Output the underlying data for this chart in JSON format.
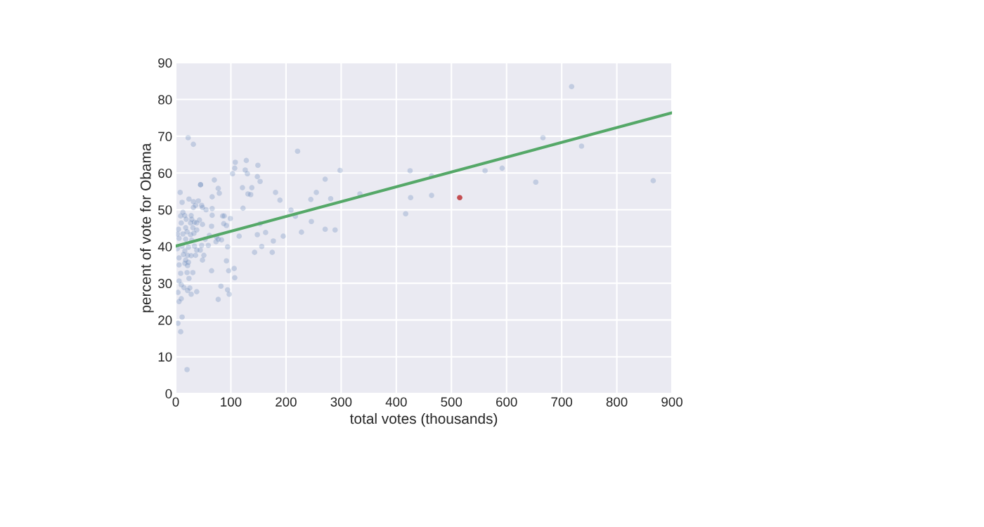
{
  "chart_data": {
    "type": "scatter",
    "xlabel": "total votes (thousands)",
    "ylabel": "percent of vote for Obama",
    "xlim": [
      0,
      900
    ],
    "ylim": [
      0,
      90
    ],
    "xticks": [
      0,
      100,
      200,
      300,
      400,
      500,
      600,
      700,
      800,
      900
    ],
    "yticks": [
      0,
      10,
      20,
      30,
      40,
      50,
      60,
      70,
      80,
      90
    ],
    "grid": true,
    "legend": false,
    "series": [
      {
        "marker": "circle",
        "color": "#4c72b0",
        "x": [
          718,
          666,
          736,
          592,
          561,
          653,
          866,
          464,
          464,
          425,
          426,
          417,
          334,
          298,
          271,
          255,
          245,
          281,
          221,
          209,
          217,
          246,
          228,
          271,
          289,
          128,
          149,
          126,
          130,
          148,
          153,
          121,
          138,
          131,
          136,
          181,
          189,
          122,
          153,
          115,
          148,
          163,
          195,
          177,
          156,
          143,
          175,
          22.5,
          32,
          108,
          107,
          103,
          70,
          45,
          45,
          77,
          79,
          8,
          66,
          24,
          11.5,
          32,
          41,
          36,
          47,
          32,
          55,
          48.5,
          66,
          13,
          9,
          16.5,
          28,
          66,
          85,
          88,
          99,
          19,
          29,
          43,
          34,
          10,
          27,
          38,
          48.5,
          87,
          92,
          65,
          18,
          31,
          5,
          38,
          20.5,
          33,
          3,
          13,
          27,
          61,
          74,
          83,
          73,
          77,
          6,
          18,
          29,
          53.5,
          47,
          59,
          94,
          11.5,
          23,
          34,
          3,
          16.5,
          38,
          44.5,
          14,
          21.5,
          51,
          36,
          28,
          6,
          18,
          23,
          48.5,
          16.5,
          6,
          21.5,
          92,
          106,
          96,
          65,
          107,
          9,
          20.5,
          24,
          31,
          6,
          10,
          15,
          25.5,
          21.5,
          38,
          82,
          94,
          97,
          77,
          28,
          4,
          10,
          6,
          11.5,
          4,
          9,
          20.5
        ],
        "values": [
          83.5,
          69.6,
          67.3,
          61.3,
          60.6,
          57.5,
          57.9,
          59.2,
          53.9,
          60.6,
          53.3,
          48.9,
          54.3,
          60.7,
          58.3,
          54.7,
          52.8,
          53,
          65.9,
          49.9,
          48.2,
          46.8,
          43.9,
          44.7,
          44.5,
          63.4,
          62.1,
          60.8,
          59.8,
          59,
          57.7,
          56,
          56,
          54.3,
          54.1,
          54.7,
          52.6,
          50.4,
          46.2,
          42.8,
          43.2,
          43.8,
          42.8,
          41.5,
          40,
          38.4,
          38.4,
          69.6,
          67.8,
          62.9,
          61.3,
          59.8,
          58.1,
          56.8,
          56.8,
          55.8,
          54.5,
          54.7,
          53.5,
          52.9,
          52,
          52.2,
          52.4,
          51.2,
          51.2,
          50.6,
          50,
          50.6,
          50.3,
          49.3,
          48.3,
          48.4,
          48.4,
          48.5,
          48.3,
          48.3,
          47.6,
          47.4,
          47.4,
          47.2,
          46.6,
          46.4,
          46.4,
          46.4,
          46,
          46.2,
          45.7,
          45.5,
          45.1,
          45.1,
          44.7,
          44.5,
          44,
          43.6,
          43.4,
          43.4,
          43.2,
          43,
          42.6,
          41.8,
          41.3,
          42,
          42.2,
          42,
          41.7,
          42,
          40.3,
          40.3,
          39.9,
          40.1,
          39.8,
          40.1,
          39.4,
          38.8,
          39,
          39,
          37.8,
          37.6,
          37.6,
          37.6,
          37.5,
          36.9,
          36.3,
          35.7,
          36.3,
          35.4,
          35,
          34.8,
          36.1,
          34,
          33.4,
          33.4,
          31.5,
          32.7,
          32.9,
          31.3,
          32.9,
          30.6,
          29.6,
          28.8,
          28.7,
          28,
          27.7,
          29.2,
          28.2,
          27,
          25.6,
          27,
          27.5,
          25.8,
          25,
          20.8,
          19.1,
          16.8,
          6.5
        ]
      },
      {
        "marker": "circle",
        "color": "#c44e52",
        "x": [
          515
        ],
        "values": [
          53.3
        ]
      },
      {
        "type": "line",
        "marker": "none",
        "color": "#55a868",
        "x": [
          0,
          900
        ],
        "values": [
          40.1,
          76.4
        ]
      }
    ]
  }
}
